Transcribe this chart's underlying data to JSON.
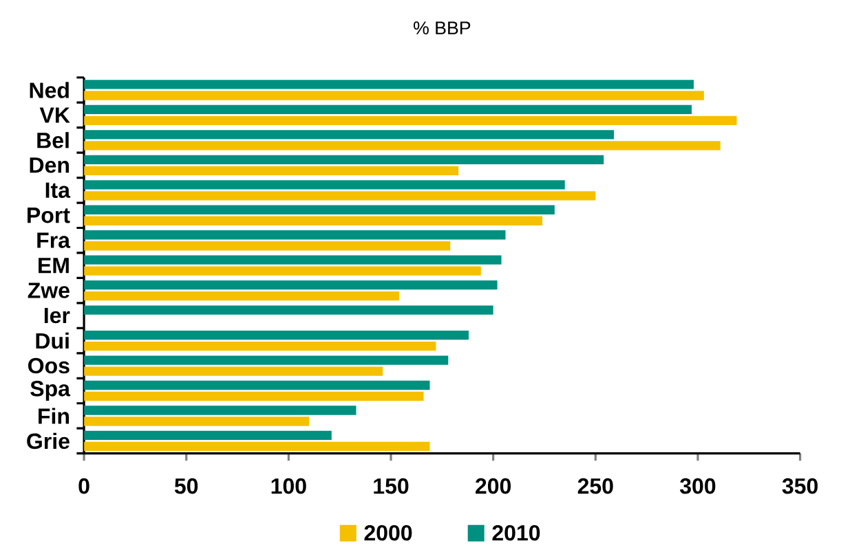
{
  "chart_data": {
    "type": "bar",
    "orientation": "horizontal",
    "title": "% BBP",
    "categories": [
      "Ned",
      "VK",
      "Bel",
      "Den",
      "Ita",
      "Port",
      "Fra",
      "EM",
      "Zwe",
      "Ier",
      "Dui",
      "Oos",
      "Spa",
      "Fin",
      "Grie"
    ],
    "series": [
      {
        "name": "2000",
        "color": "#f5c000",
        "values": [
          303,
          319,
          311,
          183,
          250,
          224,
          179,
          194,
          154,
          null,
          172,
          146,
          166,
          110,
          169
        ]
      },
      {
        "name": "2010",
        "color": "#009080",
        "values": [
          298,
          297,
          259,
          254,
          235,
          230,
          206,
          204,
          202,
          200,
          188,
          178,
          169,
          133,
          121
        ]
      }
    ],
    "xlim": [
      0,
      350
    ],
    "xticks": [
      0,
      50,
      100,
      150,
      200,
      250,
      300,
      350
    ],
    "grid": false,
    "legend": "bottom"
  }
}
